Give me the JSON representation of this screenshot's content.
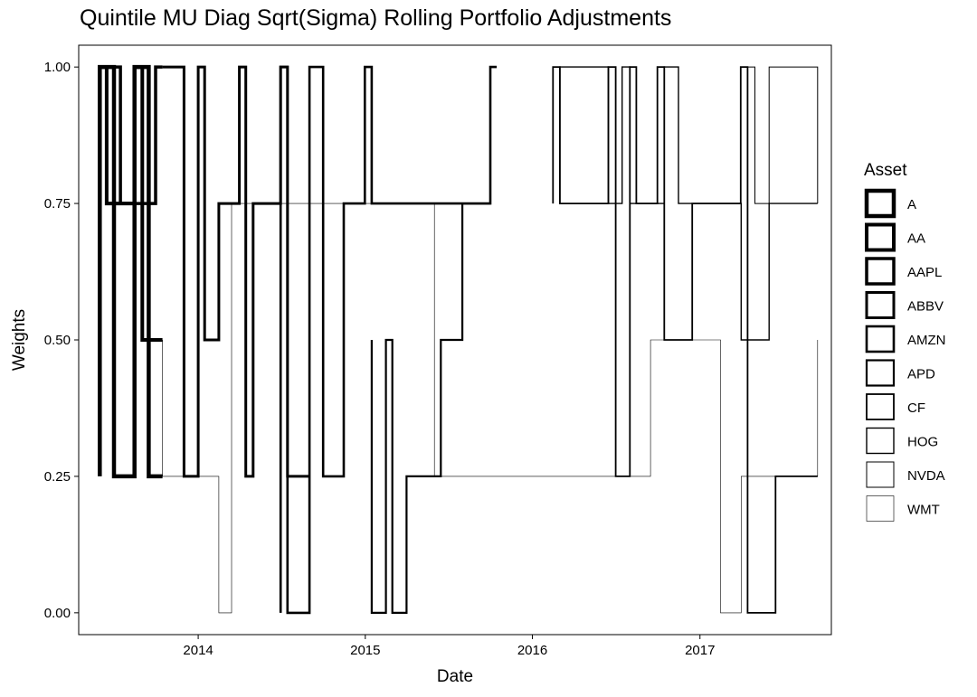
{
  "chart_data": {
    "type": "line",
    "title": "Quintile MU Diag Sqrt(Sigma) Rolling Portfolio Adjustments",
    "xlabel": "Date",
    "ylabel": "Weights",
    "xlim": [
      "2013-04-15",
      "2017-10-15"
    ],
    "ylim": [
      -0.04,
      1.04
    ],
    "x_ticks": [
      "2014-01-01",
      "2015-01-01",
      "2016-01-01",
      "2017-01-01"
    ],
    "x_tick_labels": [
      "2014",
      "2015",
      "2016",
      "2017"
    ],
    "y_ticks": [
      0.0,
      0.25,
      0.5,
      0.75,
      1.0
    ],
    "y_tick_labels": [
      "0.00",
      "0.25",
      "0.50",
      "0.75",
      "1.00"
    ],
    "grid": false,
    "legend": {
      "title": "Asset",
      "placement": "right",
      "entries": [
        "A",
        "AA",
        "AAPL",
        "ABBV",
        "AMZN",
        "APD",
        "CF",
        "HOG",
        "NVDA",
        "WMT"
      ]
    },
    "stroke_widths": [
      4.5,
      4.0,
      3.5,
      3.0,
      2.6,
      2.2,
      1.8,
      1.4,
      1.0,
      0.6
    ],
    "series": [
      {
        "name": "A",
        "points": [
          [
            "2013-05-31",
            0.25
          ],
          [
            "2013-05-31",
            1.0
          ],
          [
            "2013-07-01",
            1.0
          ],
          [
            "2013-07-01",
            0.25
          ],
          [
            "2013-08-15",
            0.25
          ],
          [
            "2013-08-15",
            1.0
          ],
          [
            "2013-09-15",
            1.0
          ],
          [
            "2013-09-15",
            0.25
          ],
          [
            "2013-10-15",
            0.25
          ]
        ]
      },
      {
        "name": "AA",
        "points": [
          [
            "2013-05-31",
            0.5
          ],
          [
            "2013-05-31",
            1.0
          ],
          [
            "2013-06-15",
            1.0
          ],
          [
            "2013-06-15",
            0.75
          ],
          [
            "2013-08-15",
            0.75
          ],
          [
            "2013-08-15",
            1.0
          ],
          [
            "2013-09-01",
            1.0
          ],
          [
            "2013-09-01",
            0.5
          ],
          [
            "2013-10-15",
            0.5
          ]
        ]
      },
      {
        "name": "AAPL",
        "points": [
          [
            "2013-05-31",
            0.75
          ],
          [
            "2013-05-31",
            1.0
          ],
          [
            "2013-07-15",
            1.0
          ],
          [
            "2013-07-15",
            0.75
          ],
          [
            "2013-09-30",
            0.75
          ],
          [
            "2013-09-30",
            1.0
          ],
          [
            "2013-10-15",
            1.0
          ]
        ]
      },
      {
        "name": "ABBV",
        "points": [
          [
            "2013-10-15",
            1.0
          ],
          [
            "2013-12-01",
            1.0
          ],
          [
            "2013-12-01",
            0.25
          ],
          [
            "2014-01-01",
            0.25
          ],
          [
            "2014-01-01",
            1.0
          ],
          [
            "2014-01-15",
            1.0
          ],
          [
            "2014-01-15",
            0.5
          ],
          [
            "2014-02-15",
            0.5
          ],
          [
            "2014-02-15",
            0.75
          ],
          [
            "2014-04-01",
            0.75
          ],
          [
            "2014-04-01",
            1.0
          ],
          [
            "2014-04-15",
            1.0
          ],
          [
            "2014-04-15",
            0.25
          ],
          [
            "2014-05-01",
            0.25
          ],
          [
            "2014-05-01",
            0.75
          ],
          [
            "2014-06-30",
            0.75
          ],
          [
            "2014-06-30",
            1.0
          ],
          [
            "2014-07-15",
            1.0
          ],
          [
            "2014-07-15",
            0.25
          ],
          [
            "2014-09-01",
            0.25
          ]
        ]
      },
      {
        "name": "AMZN",
        "points": [
          [
            "2014-06-30",
            0.0
          ],
          [
            "2014-06-30",
            1.0
          ],
          [
            "2014-07-15",
            1.0
          ],
          [
            "2014-07-15",
            0.0
          ],
          [
            "2014-09-01",
            0.0
          ],
          [
            "2014-09-01",
            1.0
          ],
          [
            "2014-10-01",
            1.0
          ],
          [
            "2014-10-01",
            0.25
          ],
          [
            "2014-11-15",
            0.25
          ],
          [
            "2014-11-15",
            0.75
          ],
          [
            "2014-12-31",
            0.75
          ],
          [
            "2014-12-31",
            1.0
          ],
          [
            "2015-01-15",
            1.0
          ],
          [
            "2015-01-15",
            0.75
          ],
          [
            "2015-10-01",
            0.75
          ],
          [
            "2015-10-01",
            1.0
          ],
          [
            "2015-10-15",
            1.0
          ]
        ]
      },
      {
        "name": "APD",
        "points": [
          [
            "2015-01-15",
            0.5
          ],
          [
            "2015-01-15",
            0.0
          ],
          [
            "2015-02-15",
            0.0
          ],
          [
            "2015-02-15",
            0.5
          ],
          [
            "2015-03-01",
            0.5
          ],
          [
            "2015-03-01",
            0.0
          ],
          [
            "2015-04-01",
            0.0
          ],
          [
            "2015-04-01",
            0.25
          ],
          [
            "2015-06-15",
            0.25
          ],
          [
            "2015-06-15",
            0.5
          ],
          [
            "2015-08-01",
            0.5
          ],
          [
            "2015-08-01",
            0.75
          ],
          [
            "2015-10-01",
            0.75
          ]
        ]
      },
      {
        "name": "CF",
        "points": [
          [
            "2016-02-15",
            0.75
          ],
          [
            "2016-02-15",
            1.0
          ],
          [
            "2016-03-01",
            1.0
          ],
          [
            "2016-03-01",
            0.75
          ],
          [
            "2016-06-15",
            0.75
          ],
          [
            "2016-06-15",
            1.0
          ],
          [
            "2016-07-01",
            1.0
          ],
          [
            "2016-07-01",
            0.25
          ],
          [
            "2016-08-01",
            0.25
          ],
          [
            "2016-08-01",
            1.0
          ],
          [
            "2016-08-15",
            1.0
          ],
          [
            "2016-08-15",
            0.75
          ],
          [
            "2016-09-30",
            0.75
          ],
          [
            "2016-09-30",
            1.0
          ],
          [
            "2016-10-15",
            1.0
          ],
          [
            "2016-10-15",
            0.5
          ],
          [
            "2016-12-15",
            0.5
          ],
          [
            "2016-12-15",
            0.75
          ],
          [
            "2017-03-31",
            0.75
          ],
          [
            "2017-03-31",
            1.0
          ],
          [
            "2017-04-15",
            1.0
          ],
          [
            "2017-04-15",
            0.0
          ],
          [
            "2017-06-15",
            0.0
          ],
          [
            "2017-06-15",
            0.25
          ],
          [
            "2017-09-15",
            0.25
          ]
        ]
      },
      {
        "name": "HOG",
        "points": [
          [
            "2016-03-01",
            0.75
          ],
          [
            "2016-03-01",
            1.0
          ],
          [
            "2016-06-15",
            1.0
          ],
          [
            "2016-06-15",
            0.75
          ],
          [
            "2016-07-15",
            0.75
          ],
          [
            "2016-07-15",
            1.0
          ],
          [
            "2016-08-01",
            1.0
          ],
          [
            "2016-08-01",
            0.75
          ],
          [
            "2016-10-15",
            0.75
          ],
          [
            "2016-10-15",
            1.0
          ],
          [
            "2016-11-15",
            1.0
          ],
          [
            "2016-11-15",
            0.75
          ],
          [
            "2017-04-01",
            0.75
          ],
          [
            "2017-04-01",
            0.5
          ],
          [
            "2017-06-01",
            0.5
          ],
          [
            "2017-06-01",
            0.75
          ],
          [
            "2017-09-15",
            0.75
          ]
        ]
      },
      {
        "name": "NVDA",
        "points": [
          [
            "2017-04-15",
            1.0
          ],
          [
            "2017-05-01",
            1.0
          ],
          [
            "2017-05-01",
            0.75
          ],
          [
            "2017-06-01",
            0.75
          ],
          [
            "2017-06-01",
            1.0
          ],
          [
            "2017-09-15",
            1.0
          ],
          [
            "2017-09-15",
            0.75
          ]
        ]
      },
      {
        "name": "WMT",
        "points": [
          [
            "2013-10-15",
            0.5
          ],
          [
            "2013-10-15",
            0.25
          ],
          [
            "2014-02-15",
            0.25
          ],
          [
            "2014-02-15",
            0.0
          ],
          [
            "2014-03-15",
            0.0
          ],
          [
            "2014-03-15",
            0.75
          ],
          [
            "2015-06-01",
            0.75
          ],
          [
            "2015-06-01",
            0.25
          ],
          [
            "2016-09-15",
            0.25
          ],
          [
            "2016-09-15",
            0.5
          ],
          [
            "2017-02-15",
            0.5
          ],
          [
            "2017-02-15",
            0.0
          ],
          [
            "2017-04-01",
            0.0
          ],
          [
            "2017-04-01",
            0.25
          ],
          [
            "2017-09-15",
            0.25
          ],
          [
            "2017-09-15",
            0.5
          ]
        ]
      }
    ]
  }
}
